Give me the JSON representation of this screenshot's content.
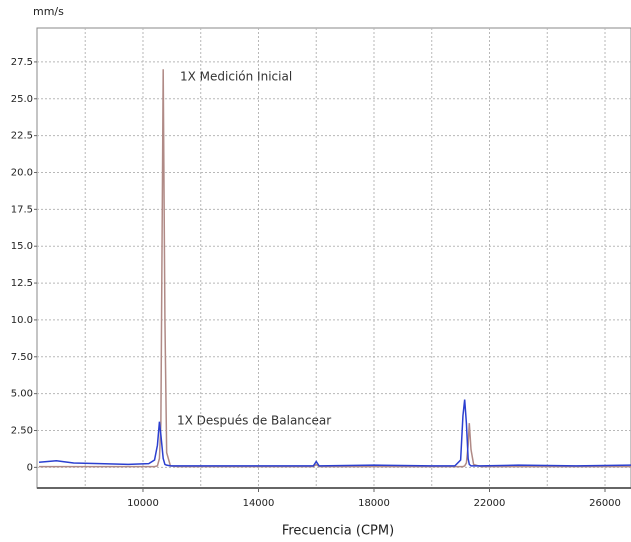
{
  "chart_data": {
    "type": "line",
    "y_axis_label": "mm/s",
    "x_axis_label": "Frecuencia (CPM)",
    "annotations": [
      "1X Medición Inicial",
      "1X Después de Balancear"
    ],
    "x": [
      6400,
      7000,
      7600,
      8500,
      9500,
      10200,
      10400,
      10500,
      10570,
      10620,
      10700,
      10760,
      10820,
      10950,
      11200,
      12000,
      14000,
      15900,
      16000,
      16100,
      18000,
      20000,
      20800,
      21000,
      21080,
      21140,
      21200,
      21260,
      21300,
      21360,
      21450,
      21700,
      23000,
      25000,
      26900
    ],
    "series": [
      {
        "color": "#b08a86",
        "values": [
          0.05,
          0.05,
          0.05,
          0.05,
          0.05,
          0.05,
          0.05,
          0.1,
          0.6,
          3,
          27,
          10,
          1,
          0.1,
          0.05,
          0.05,
          0.05,
          0.05,
          0.2,
          0.05,
          0.05,
          0.05,
          0.05,
          0.05,
          0.05,
          0.1,
          0.3,
          1.5,
          3.0,
          1.2,
          0.2,
          0.05,
          0.05,
          0.05,
          0.05
        ]
      },
      {
        "color": "#2b3fd0",
        "values": [
          0.35,
          0.45,
          0.3,
          0.25,
          0.2,
          0.25,
          0.5,
          1.5,
          3.1,
          2.2,
          0.6,
          0.2,
          0.15,
          0.1,
          0.1,
          0.1,
          0.1,
          0.1,
          0.4,
          0.1,
          0.15,
          0.1,
          0.1,
          0.5,
          3.5,
          4.6,
          3.0,
          0.6,
          0.2,
          0.1,
          0.1,
          0.1,
          0.15,
          0.1,
          0.15
        ]
      }
    ],
    "xlim": [
      6330,
      26900
    ],
    "ylim": [
      -1.4,
      29.8
    ],
    "xticks": [
      10000,
      14000,
      18000,
      22000,
      26000
    ],
    "yticks": [
      0,
      {
        "value": 2.5,
        "label": "2.50"
      },
      {
        "value": 5,
        "label": "5.00"
      },
      {
        "value": 7.5,
        "label": "7.50"
      },
      {
        "value": 10,
        "label": "10.0"
      },
      12.5,
      {
        "value": 15,
        "label": "15.0"
      },
      17.5,
      {
        "value": 20,
        "label": "20.0"
      },
      22.5,
      {
        "value": 25,
        "label": "25.0"
      },
      27.5
    ],
    "grid": true
  }
}
